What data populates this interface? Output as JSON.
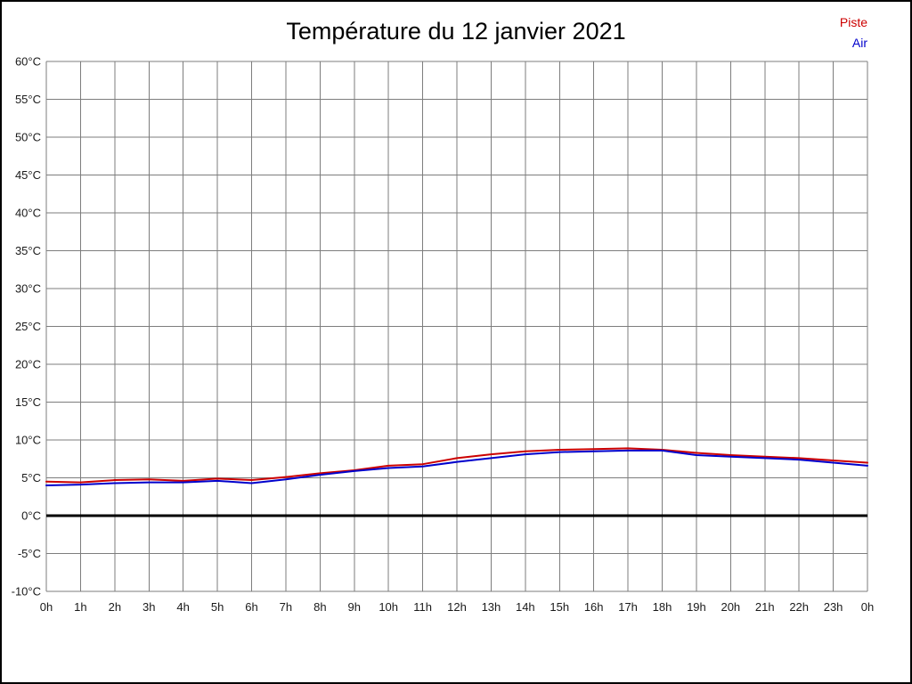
{
  "title": "Température du 12 janvier 2021",
  "legend": {
    "piste": "Piste",
    "air": "Air",
    "piste_color": "#cc0000",
    "air_color": "#0000cc"
  },
  "chart_data": {
    "type": "line",
    "title": "Température du 12 janvier 2021",
    "x_labels": [
      "0h",
      "1h",
      "2h",
      "3h",
      "4h",
      "5h",
      "6h",
      "7h",
      "8h",
      "9h",
      "10h",
      "11h",
      "12h",
      "13h",
      "14h",
      "15h",
      "16h",
      "17h",
      "18h",
      "19h",
      "20h",
      "21h",
      "22h",
      "23h",
      "0h"
    ],
    "ylim": [
      -10,
      60
    ],
    "ytick_step": 5,
    "y_tick_labels": [
      "60°C",
      "55°C",
      "50°C",
      "45°C",
      "40°C",
      "35°C",
      "30°C",
      "25°C",
      "20°C",
      "15°C",
      "10°C",
      "5°C",
      "0°C",
      "-5°C",
      "-10°C"
    ],
    "grid": true,
    "zero_line_value": 0,
    "legend_position": "top-right",
    "series": [
      {
        "name": "Piste",
        "color": "#cc0000",
        "values": [
          4.5,
          4.4,
          4.7,
          4.8,
          4.6,
          4.9,
          4.7,
          5.1,
          5.6,
          6.0,
          6.6,
          6.8,
          7.6,
          8.1,
          8.5,
          8.7,
          8.8,
          8.9,
          8.7,
          8.3,
          8.0,
          7.8,
          7.6,
          7.3,
          7.0
        ]
      },
      {
        "name": "Air",
        "color": "#0000cc",
        "values": [
          4.0,
          4.1,
          4.3,
          4.4,
          4.4,
          4.6,
          4.3,
          4.8,
          5.4,
          5.9,
          6.3,
          6.5,
          7.1,
          7.6,
          8.1,
          8.4,
          8.5,
          8.6,
          8.6,
          8.0,
          7.8,
          7.6,
          7.4,
          7.0,
          6.6
        ]
      }
    ]
  }
}
